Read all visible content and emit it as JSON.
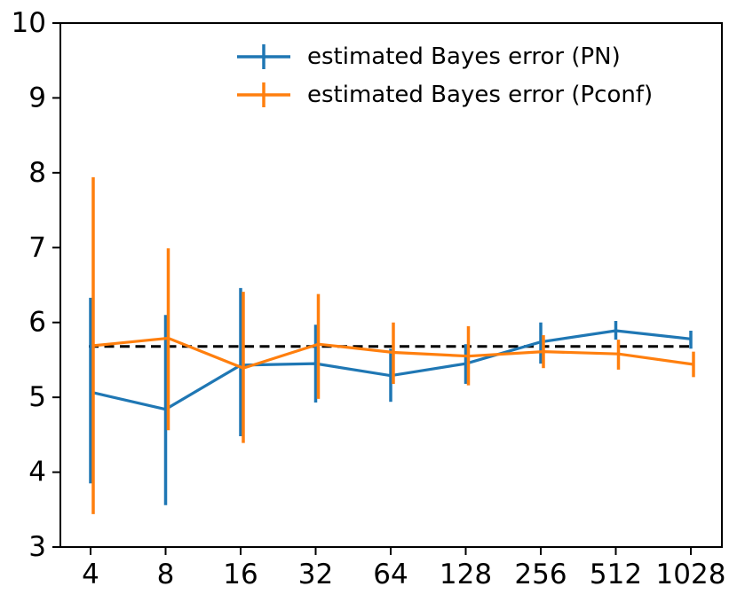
{
  "figure": {
    "background": "#ffffff",
    "text_color": "#000000"
  },
  "chart_data": {
    "type": "line",
    "subtype": "errorbar",
    "x_scale": "log2",
    "categories": [
      "4",
      "8",
      "16",
      "32",
      "64",
      "128",
      "256",
      "512",
      "1028"
    ],
    "x_values": [
      4,
      8,
      16,
      32,
      64,
      128,
      256,
      512,
      1028
    ],
    "series": [
      {
        "name": "estimated Bayes error (PN)",
        "color": "#1f77b4",
        "values": [
          5.07,
          4.84,
          5.43,
          5.45,
          5.29,
          5.45,
          5.74,
          5.89,
          5.78
        ],
        "err_low": [
          3.85,
          3.56,
          4.48,
          4.93,
          4.94,
          5.18,
          5.45,
          5.77,
          5.65
        ],
        "err_high": [
          6.33,
          6.1,
          6.46,
          5.97,
          5.65,
          5.71,
          6.0,
          6.02,
          5.89
        ]
      },
      {
        "name": "estimated Bayes error (Pconf)",
        "color": "#ff7f0e",
        "values": [
          5.69,
          5.79,
          5.39,
          5.71,
          5.6,
          5.55,
          5.61,
          5.58,
          5.44
        ],
        "err_low": [
          3.44,
          4.56,
          4.39,
          4.98,
          5.18,
          5.16,
          5.39,
          5.37,
          5.27
        ],
        "err_high": [
          7.94,
          6.99,
          6.41,
          6.38,
          6.0,
          5.95,
          5.83,
          5.77,
          5.61
        ]
      }
    ],
    "reference_line": {
      "y": 5.68,
      "style": "dashed",
      "color": "#000000"
    },
    "ylim": [
      3,
      10
    ],
    "yticks": [
      "3",
      "4",
      "5",
      "6",
      "7",
      "8",
      "9",
      "10"
    ],
    "grid": false,
    "legend_position": "upper center",
    "title": "",
    "xlabel": "",
    "ylabel": ""
  }
}
